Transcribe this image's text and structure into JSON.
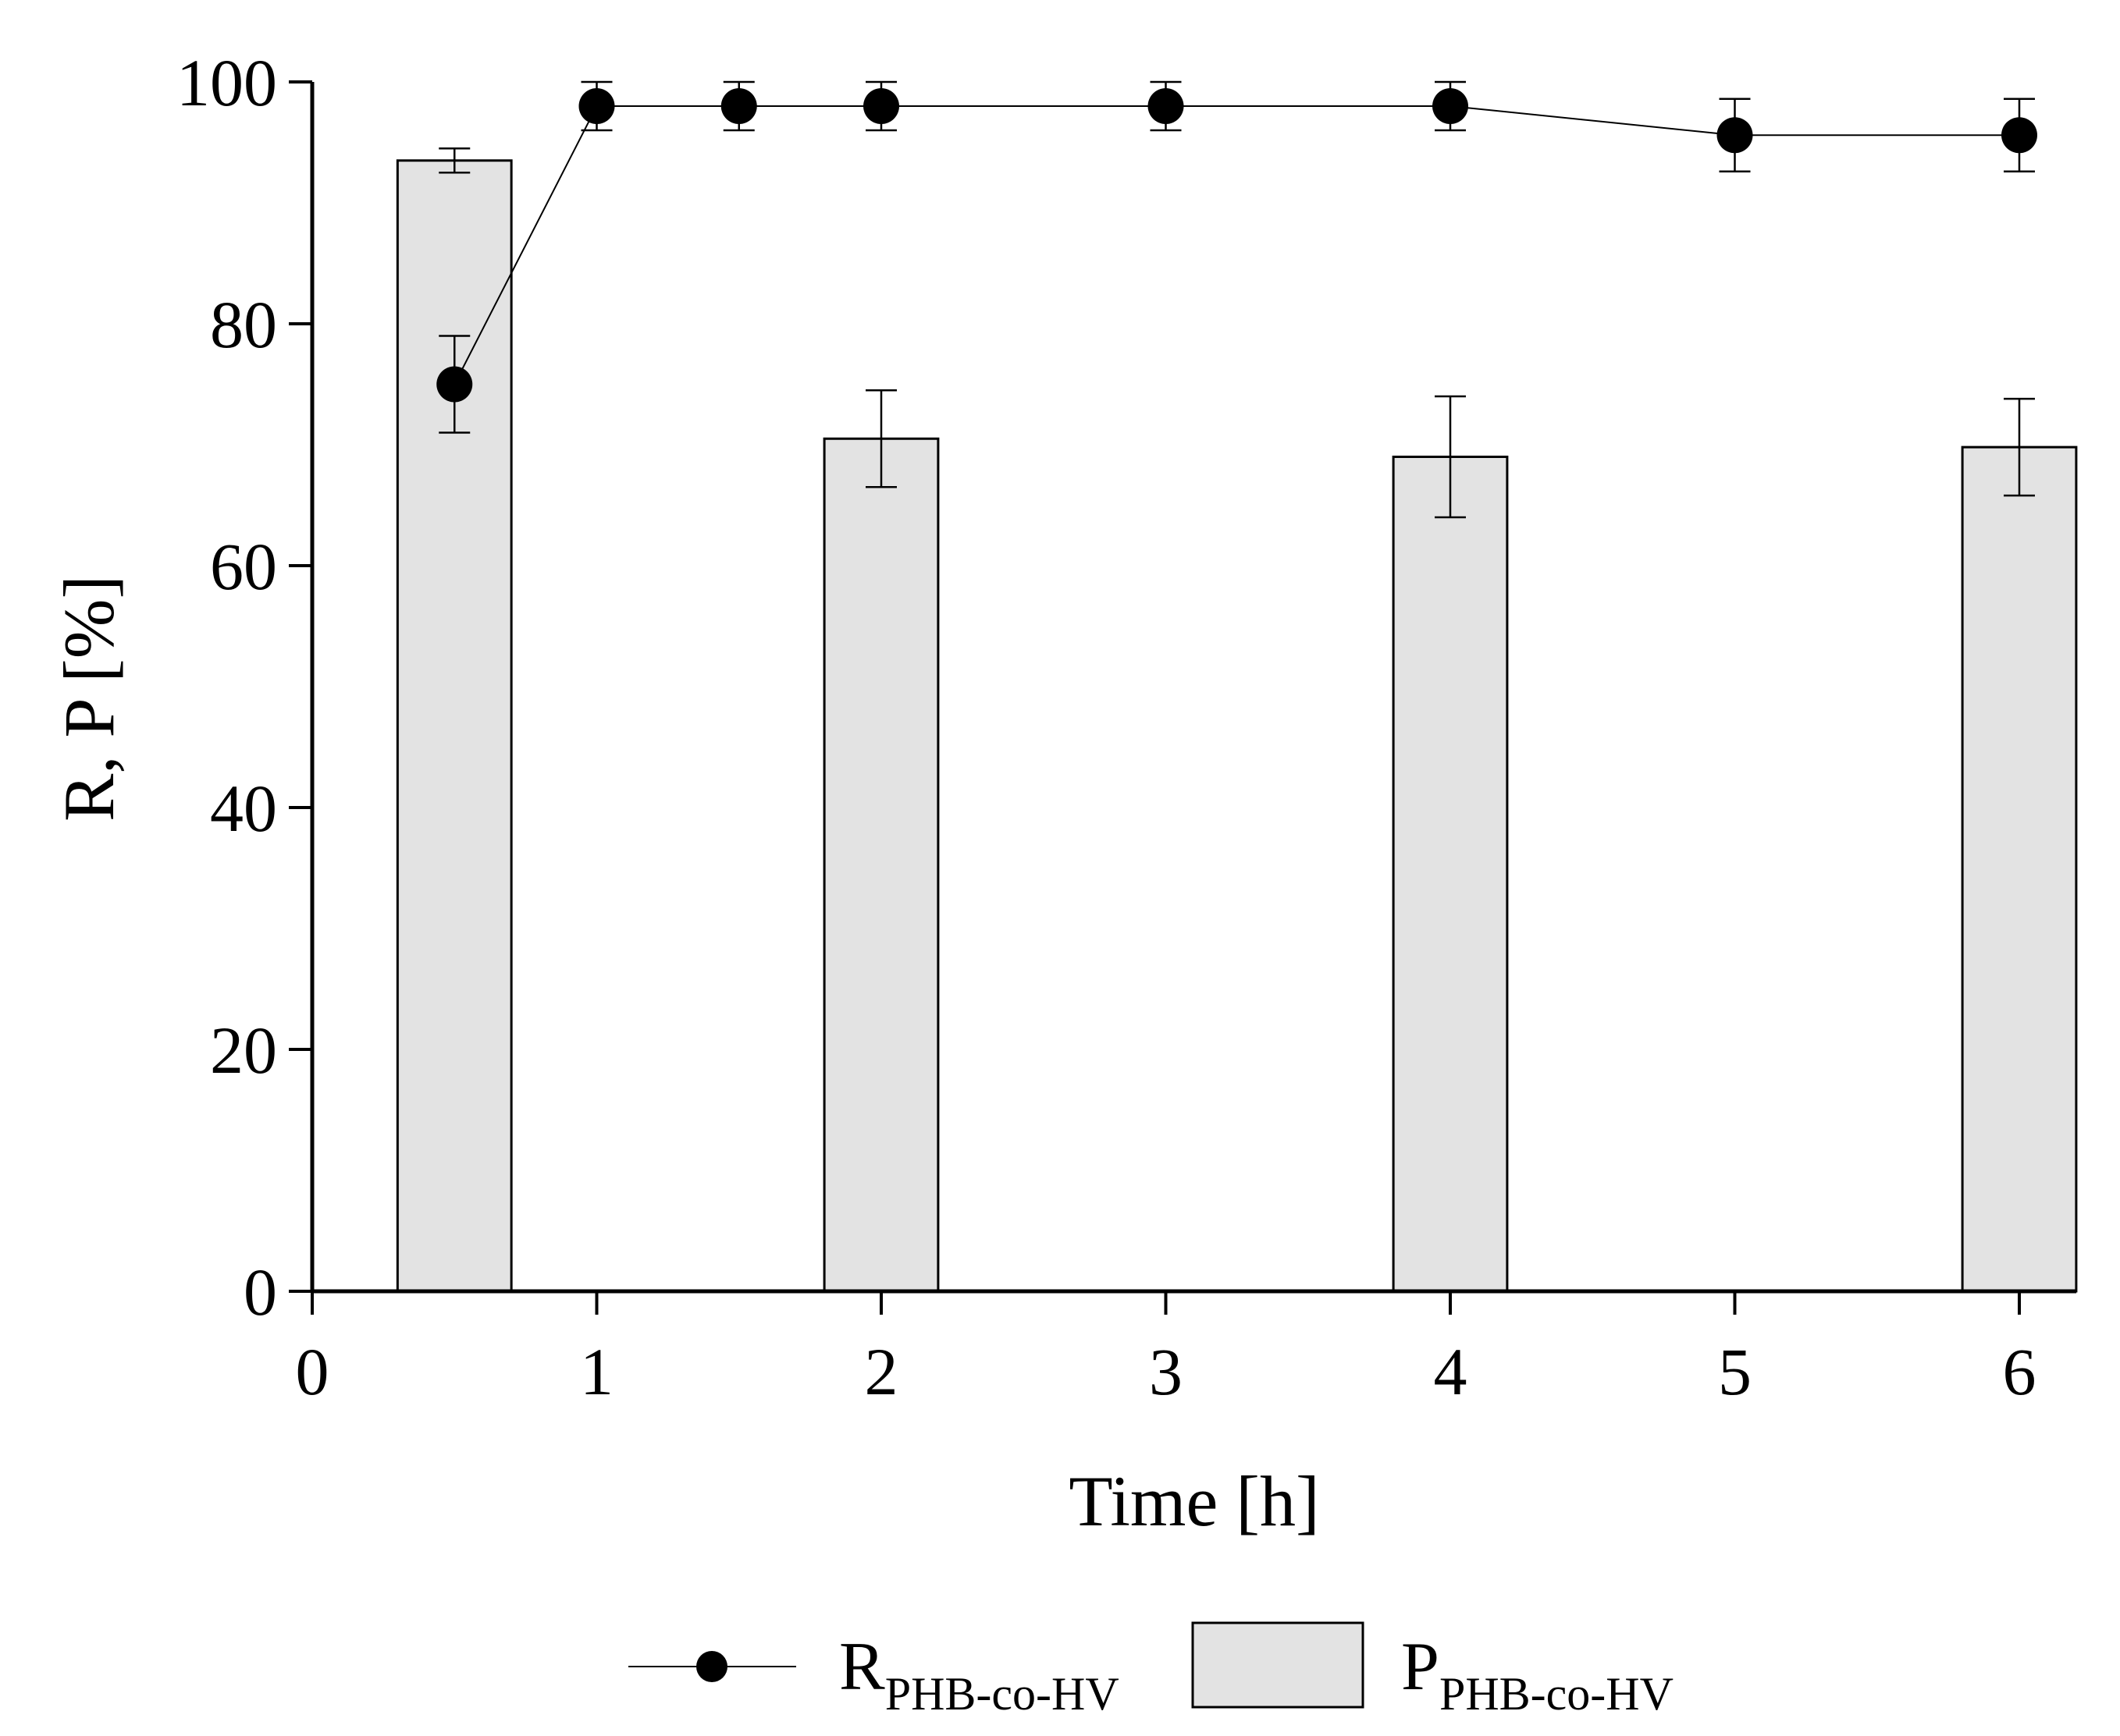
{
  "chart_data": {
    "type": "bar+line",
    "title": "",
    "xlabel": "Time [h]",
    "ylabel": "R, P [%]",
    "xlim": [
      0,
      6.2
    ],
    "ylim": [
      0,
      100
    ],
    "xticks": [
      0,
      1,
      2,
      3,
      4,
      5,
      6
    ],
    "yticks": [
      0,
      20,
      40,
      60,
      80,
      100
    ],
    "bar_width": 0.4,
    "colors": {
      "bar_fill": "#e3e3e3",
      "stroke": "#000000",
      "marker": "#000000"
    },
    "bars": {
      "name": "P_PHB-co-HV",
      "x": [
        0.5,
        2,
        4,
        6
      ],
      "values": [
        93.5,
        70.5,
        69,
        69.8
      ],
      "errors": [
        1.0,
        4.0,
        5.0,
        4.0
      ]
    },
    "line": {
      "name": "R_PHB-co-HV",
      "x": [
        0.5,
        1,
        1.5,
        2,
        3,
        4,
        5,
        6
      ],
      "values": [
        75,
        98,
        98,
        98,
        98,
        98,
        95.6,
        95.6
      ],
      "errors": [
        4.0,
        2.0,
        2.0,
        2.0,
        2.0,
        2.0,
        3.0,
        3.0
      ]
    },
    "legend": {
      "position": "bottom-center",
      "line_label_main": "R",
      "line_label_sub": "PHB-co-HV",
      "bar_label_main": "P",
      "bar_label_sub": "PHB-co-HV"
    }
  }
}
